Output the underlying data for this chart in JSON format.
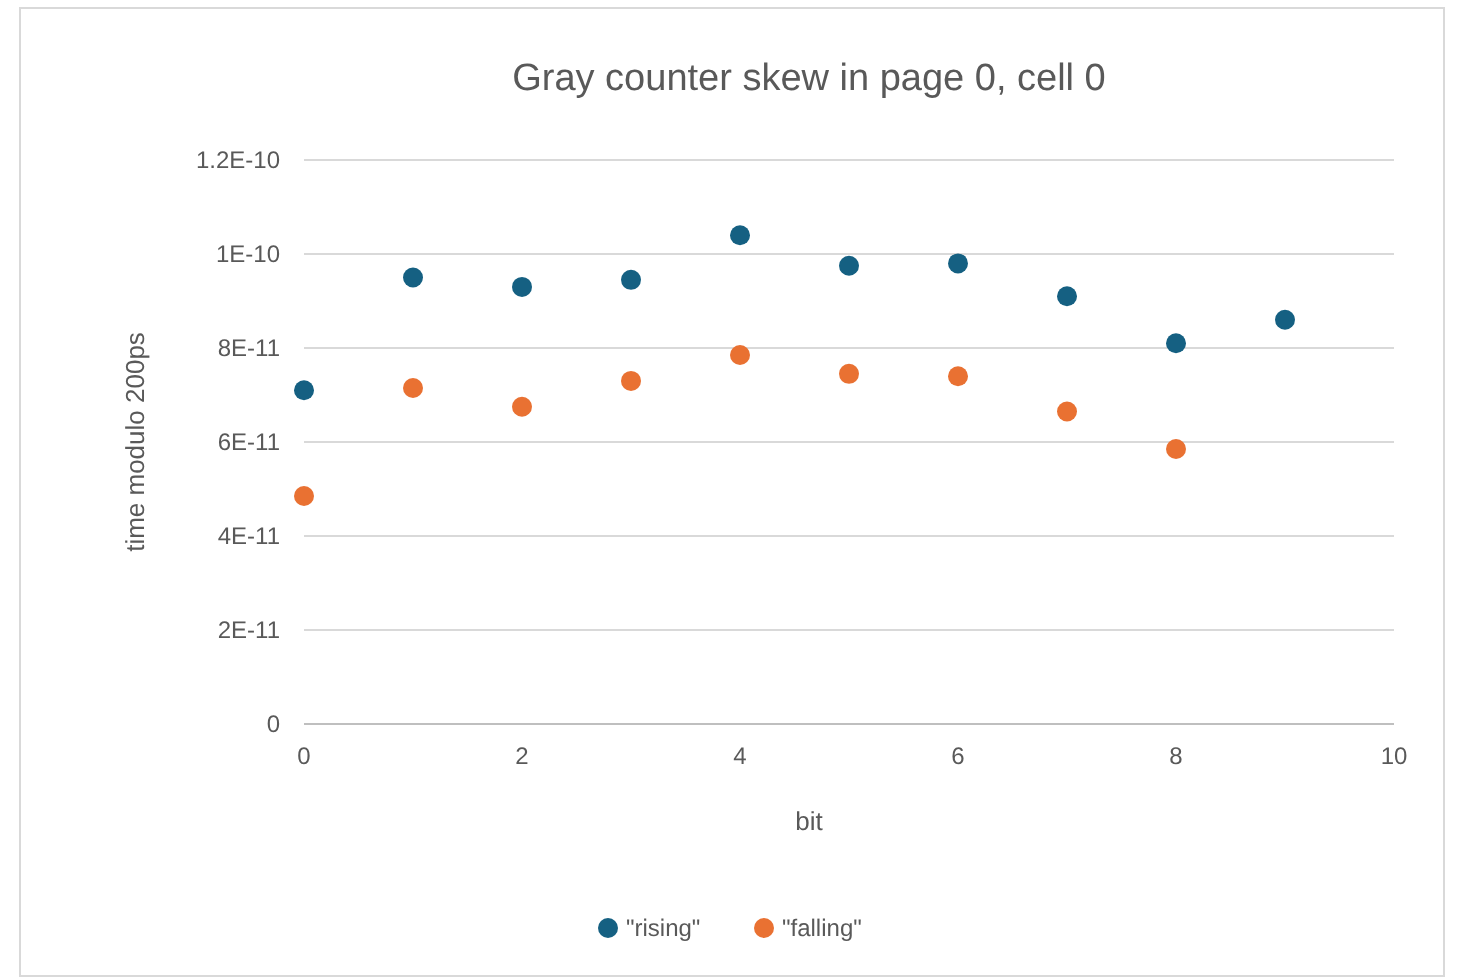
{
  "chart_data": {
    "type": "scatter",
    "title": "Gray counter skew in page 0, cell 0",
    "xlabel": "bit",
    "ylabel": "time modulo 200ps",
    "xlim": [
      0,
      10
    ],
    "xticks": [
      0,
      2,
      4,
      6,
      8,
      10
    ],
    "ylim": [
      0,
      1.2e-10
    ],
    "yticks": [
      0,
      {
        "value": 2e-11,
        "label": "2E-11"
      },
      {
        "value": 4e-11,
        "label": "4E-11"
      },
      {
        "value": 6e-11,
        "label": "6E-11"
      },
      {
        "value": 8e-11,
        "label": "8E-11"
      },
      {
        "value": 1e-10,
        "label": "1E-10"
      },
      {
        "value": 1.2e-10,
        "label": "1.2E-10"
      }
    ],
    "grid": "y",
    "legend": "bottom",
    "marker": "circle",
    "series": [
      {
        "name": "\"rising\"",
        "color": "#156082",
        "x": [
          0,
          1,
          2,
          3,
          4,
          5,
          6,
          7,
          8,
          9
        ],
        "values": [
          7.1e-11,
          9.5e-11,
          9.3e-11,
          9.45e-11,
          1.04e-10,
          9.75e-11,
          9.8e-11,
          9.1e-11,
          8.1e-11,
          8.6e-11
        ]
      },
      {
        "name": "\"falling\"",
        "color": "#e97132",
        "x": [
          0,
          1,
          2,
          3,
          4,
          5,
          6,
          7,
          8
        ],
        "values": [
          4.85e-11,
          7.15e-11,
          6.75e-11,
          7.3e-11,
          7.85e-11,
          7.45e-11,
          7.4e-11,
          6.65e-11,
          5.85e-11
        ]
      }
    ]
  }
}
